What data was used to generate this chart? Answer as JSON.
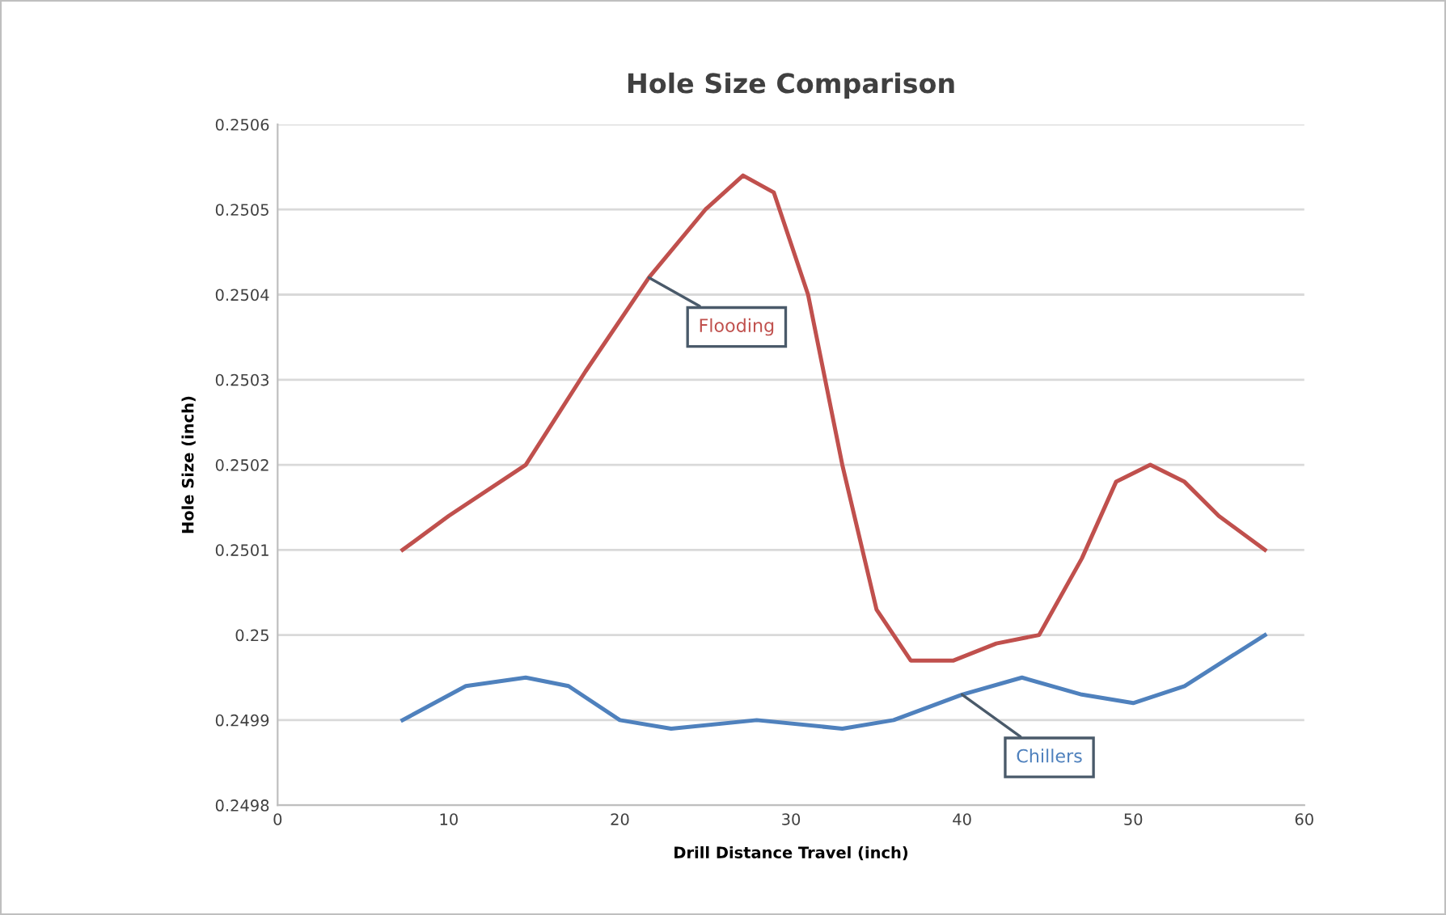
{
  "chart_data": {
    "type": "line",
    "title": "Hole Size Comparison",
    "xlabel": "Drill Distance Travel (inch)",
    "ylabel": "Hole Size (inch)",
    "xlim": [
      0,
      60
    ],
    "xticks": [
      0,
      10,
      20,
      30,
      40,
      50,
      60
    ],
    "ylim": [
      0.2498,
      0.2506
    ],
    "yticks": [
      0.2498,
      0.2499,
      0.25,
      0.2501,
      0.2502,
      0.2503,
      0.2504,
      0.2505,
      0.2506
    ],
    "grid": "y",
    "legend": false,
    "marker": "none",
    "line_style": "solid",
    "series": [
      {
        "name": "Flooding",
        "color": "#c0504d",
        "x": [
          7.3,
          10,
          14.5,
          18,
          21.7,
          25,
          27.2,
          29,
          31,
          33,
          35,
          37,
          39.5,
          42,
          44.5,
          47,
          49,
          51,
          53,
          55,
          57.7
        ],
        "values": [
          0.2501,
          0.25014,
          0.2502,
          0.25031,
          0.25042,
          0.2505,
          0.25054,
          0.25052,
          0.2504,
          0.2502,
          0.25003,
          0.24997,
          0.24997,
          0.24999,
          0.25,
          0.25009,
          0.25018,
          0.2502,
          0.25018,
          0.25014,
          0.2501
        ]
      },
      {
        "name": "Chillers",
        "color": "#4f81bd",
        "x": [
          7.3,
          11,
          14.5,
          17,
          20,
          23,
          28,
          33,
          36,
          40,
          43.5,
          47,
          50,
          53,
          57.7
        ],
        "values": [
          0.2499,
          0.24994,
          0.24995,
          0.24994,
          0.2499,
          0.24989,
          0.2499,
          0.24989,
          0.2499,
          0.24993,
          0.24995,
          0.24993,
          0.24992,
          0.24994,
          0.25
        ]
      }
    ]
  }
}
